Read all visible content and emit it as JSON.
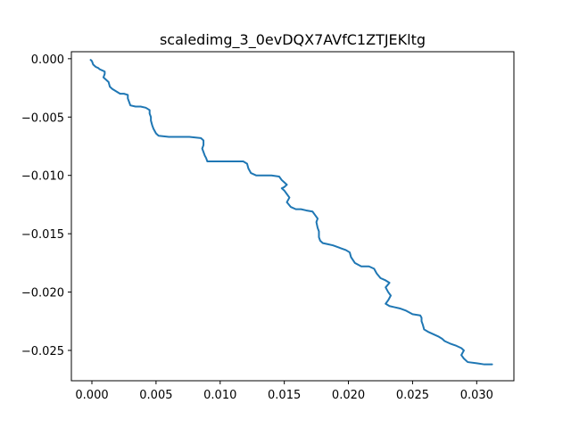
{
  "chart_data": {
    "type": "line",
    "title": "scaledimg_3_0evDQX7AVfC1ZTJEKltg",
    "xlabel": "",
    "ylabel": "",
    "xlim": [
      -0.0016,
      0.0329
    ],
    "ylim": [
      -0.0276,
      0.0006
    ],
    "grid": false,
    "legend": "none",
    "colors": {
      "series": "#1f77b4"
    },
    "x_ticks": [
      {
        "value": 0.0,
        "label": "0.000"
      },
      {
        "value": 0.005,
        "label": "0.005"
      },
      {
        "value": 0.01,
        "label": "0.010"
      },
      {
        "value": 0.015,
        "label": "0.015"
      },
      {
        "value": 0.02,
        "label": "0.020"
      },
      {
        "value": 0.025,
        "label": "0.025"
      },
      {
        "value": 0.03,
        "label": "0.030"
      }
    ],
    "y_ticks": [
      {
        "value": 0.0,
        "label": "0.000"
      },
      {
        "value": -0.005,
        "label": "−0.005"
      },
      {
        "value": -0.01,
        "label": "−0.010"
      },
      {
        "value": -0.015,
        "label": "−0.015"
      },
      {
        "value": -0.02,
        "label": "−0.020"
      },
      {
        "value": -0.025,
        "label": "−0.025"
      }
    ],
    "series": [
      {
        "x": [
          -0.0001,
          0.0,
          0.0001,
          0.0003,
          0.0005,
          0.0006,
          0.0008,
          0.001,
          0.001,
          0.0009,
          0.0011,
          0.0013,
          0.0014,
          0.0016,
          0.0019,
          0.0022,
          0.0025,
          0.0028,
          0.0028,
          0.0029,
          0.003,
          0.0034,
          0.0038,
          0.0042,
          0.0045,
          0.0045,
          0.0046,
          0.0046,
          0.0047,
          0.0048,
          0.005,
          0.0052,
          0.006,
          0.0068,
          0.0076,
          0.0085,
          0.0087,
          0.0087,
          0.0086,
          0.0087,
          0.0088,
          0.0089,
          0.009,
          0.0095,
          0.0102,
          0.011,
          0.0118,
          0.0121,
          0.0122,
          0.0124,
          0.0128,
          0.0134,
          0.014,
          0.0146,
          0.0148,
          0.015,
          0.0152,
          0.015,
          0.0148,
          0.015,
          0.0152,
          0.0154,
          0.0152,
          0.0155,
          0.0159,
          0.0163,
          0.0167,
          0.0172,
          0.0174,
          0.0176,
          0.0175,
          0.0176,
          0.0177,
          0.0177,
          0.0178,
          0.018,
          0.0184,
          0.0188,
          0.0193,
          0.0198,
          0.0201,
          0.0202,
          0.0205,
          0.021,
          0.0216,
          0.022,
          0.0222,
          0.0225,
          0.0229,
          0.0232,
          0.0229,
          0.0231,
          0.0233,
          0.0231,
          0.0229,
          0.0232,
          0.0236,
          0.024,
          0.0245,
          0.025,
          0.0256,
          0.0257,
          0.0257,
          0.0258,
          0.0259,
          0.0262,
          0.0266,
          0.027,
          0.0273,
          0.0275,
          0.0279,
          0.0284,
          0.0288,
          0.029,
          0.0288,
          0.029,
          0.0293,
          0.03,
          0.0306,
          0.0312
        ],
        "y": [
          -0.0001,
          -0.0002,
          -0.0005,
          -0.0007,
          -0.0008,
          -0.0009,
          -0.001,
          -0.0011,
          -0.0013,
          -0.0016,
          -0.0018,
          -0.002,
          -0.0024,
          -0.0026,
          -0.0028,
          -0.003,
          -0.003,
          -0.0031,
          -0.0034,
          -0.0037,
          -0.004,
          -0.0041,
          -0.0041,
          -0.0042,
          -0.0044,
          -0.0047,
          -0.005,
          -0.0053,
          -0.0057,
          -0.006,
          -0.0064,
          -0.0066,
          -0.0067,
          -0.0067,
          -0.0067,
          -0.0068,
          -0.007,
          -0.0074,
          -0.0077,
          -0.008,
          -0.0083,
          -0.0085,
          -0.0088,
          -0.0088,
          -0.0088,
          -0.0088,
          -0.0088,
          -0.009,
          -0.0094,
          -0.0098,
          -0.01,
          -0.01,
          -0.01,
          -0.0101,
          -0.0104,
          -0.0106,
          -0.0108,
          -0.011,
          -0.0111,
          -0.0113,
          -0.0116,
          -0.0119,
          -0.0123,
          -0.0127,
          -0.0129,
          -0.0129,
          -0.013,
          -0.0131,
          -0.0134,
          -0.0137,
          -0.014,
          -0.0145,
          -0.0148,
          -0.0153,
          -0.0156,
          -0.0158,
          -0.0159,
          -0.016,
          -0.0162,
          -0.0164,
          -0.0166,
          -0.017,
          -0.0175,
          -0.0178,
          -0.0178,
          -0.018,
          -0.0184,
          -0.0188,
          -0.019,
          -0.0192,
          -0.0196,
          -0.02,
          -0.0203,
          -0.0207,
          -0.021,
          -0.0212,
          -0.0213,
          -0.0214,
          -0.0216,
          -0.0219,
          -0.022,
          -0.0222,
          -0.0225,
          -0.0228,
          -0.0232,
          -0.0234,
          -0.0236,
          -0.0238,
          -0.024,
          -0.0242,
          -0.0244,
          -0.0246,
          -0.0248,
          -0.025,
          -0.0254,
          -0.0257,
          -0.026,
          -0.0261,
          -0.0262,
          -0.0262
        ]
      }
    ]
  }
}
